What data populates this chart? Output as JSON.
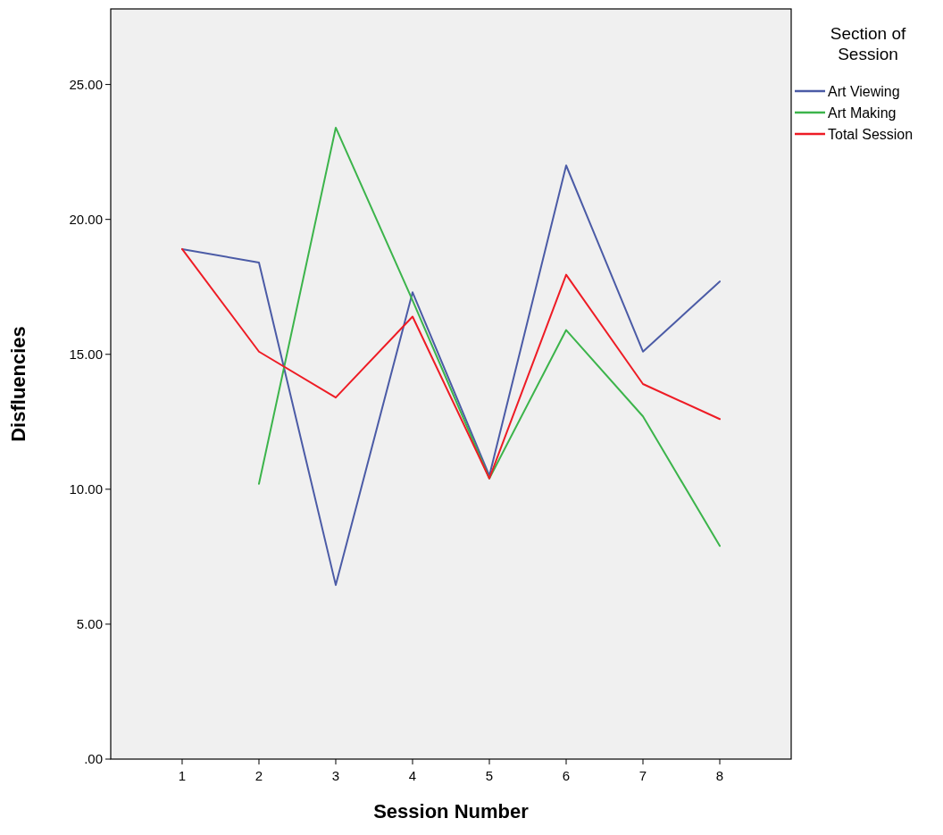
{
  "chart_data": {
    "type": "line",
    "xlabel": "Session Number",
    "ylabel": "Disfluencies",
    "legend_title": "Section of Session",
    "legend": "top right",
    "categories": [
      "1",
      "2",
      "3",
      "4",
      "5",
      "6",
      "7",
      "8"
    ],
    "series": [
      {
        "name": "Art Viewing",
        "color": "#4b5ba6",
        "values": [
          18.9,
          18.4,
          6.45,
          17.3,
          10.5,
          22.0,
          15.1,
          17.7
        ]
      },
      {
        "name": "Art Making",
        "color": "#3cb44b",
        "values": [
          null,
          10.2,
          23.4,
          17.0,
          10.4,
          15.9,
          12.7,
          7.9
        ]
      },
      {
        "name": "Total Session",
        "color": "#ee1c25",
        "values": [
          18.9,
          15.1,
          13.4,
          16.4,
          10.4,
          17.95,
          13.9,
          12.6
        ]
      }
    ],
    "ylim": [
      0,
      27.8
    ],
    "yticks": [
      {
        "value": 0,
        "label": ".00"
      },
      {
        "value": 5,
        "label": "5.00"
      },
      {
        "value": 10,
        "label": "10.00"
      },
      {
        "value": 15,
        "label": "15.00"
      },
      {
        "value": 20,
        "label": "20.00"
      },
      {
        "value": 25,
        "label": "25.00"
      }
    ],
    "grid": false
  }
}
